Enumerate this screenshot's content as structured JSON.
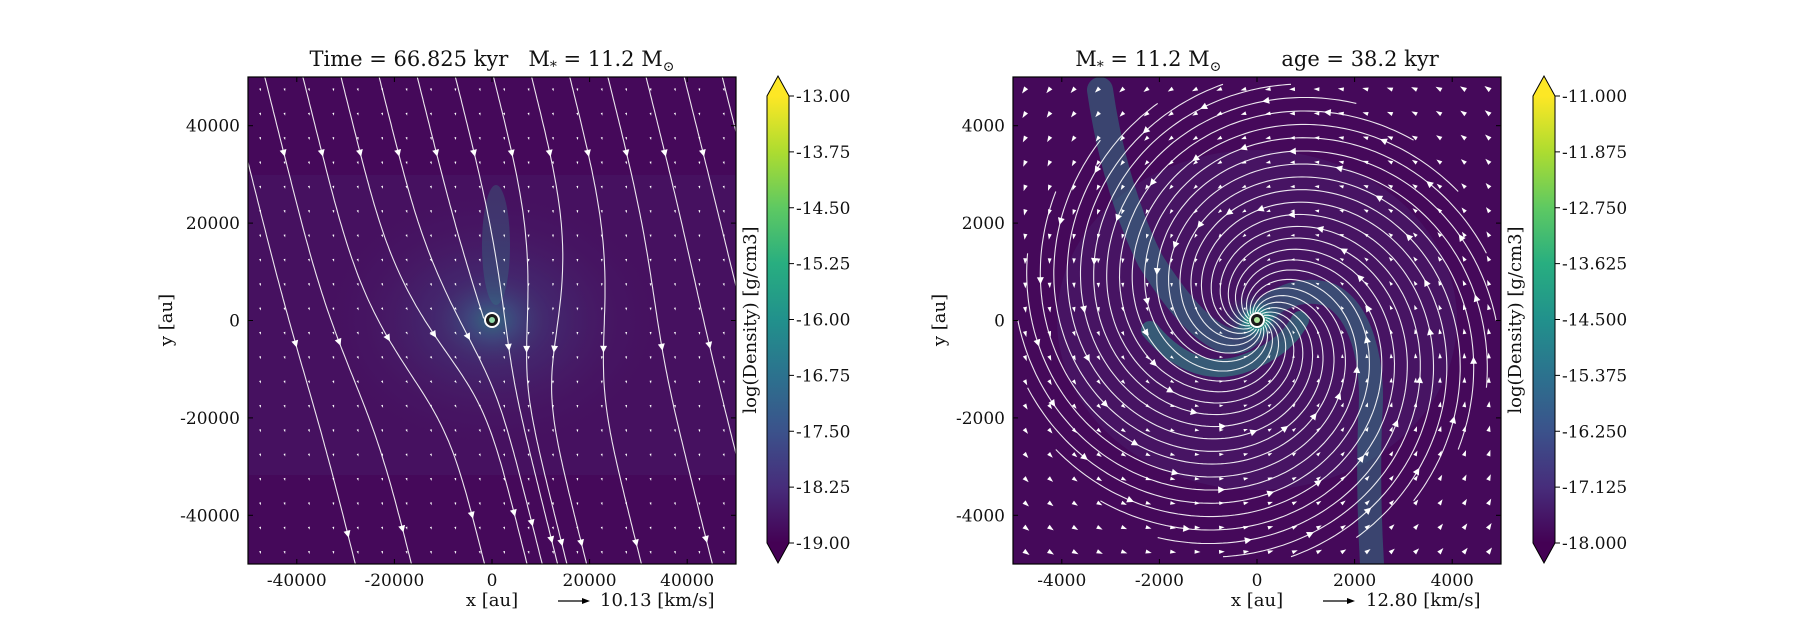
{
  "chart_data": [
    {
      "type": "heatmap",
      "title_parts": [
        "Time = 66.825 kyr",
        "M",
        "*",
        " = 11.2 M",
        "⊙"
      ],
      "xlabel": "x [au]",
      "ylabel": "y [au]",
      "xlim": [
        -50000,
        50000
      ],
      "ylim": [
        -50000,
        50000
      ],
      "xticks": [
        -40000,
        -20000,
        0,
        20000,
        40000
      ],
      "yticks": [
        -40000,
        -20000,
        0,
        20000,
        40000
      ],
      "xtick_labels": [
        "-40000",
        "-20000",
        "0",
        "20000",
        "40000"
      ],
      "ytick_labels": [
        "-40000",
        "-20000",
        "0",
        "20000",
        "40000"
      ],
      "quiver_key": "10.13 [km/s]",
      "colorbar": {
        "label": "log(Density) [g/cm3]",
        "min": -19.0,
        "max": -13.0,
        "ticks": [
          "-13.00",
          "-13.75",
          "-14.50",
          "-15.25",
          "-16.00",
          "-16.75",
          "-17.50",
          "-18.25",
          "-19.00"
        ],
        "colormap": "viridis"
      },
      "flow": "uniform",
      "sink": [
        0,
        0
      ]
    },
    {
      "type": "heatmap",
      "title_parts": [
        "M",
        "*",
        " = 11.2 M",
        "⊙",
        "age = 38.2 kyr"
      ],
      "xlabel": "x [au]",
      "ylabel": "y [au]",
      "xlim": [
        -5000,
        5000
      ],
      "ylim": [
        -5000,
        5000
      ],
      "xticks": [
        -4000,
        -2000,
        0,
        2000,
        4000
      ],
      "yticks": [
        -4000,
        -2000,
        0,
        2000,
        4000
      ],
      "xtick_labels": [
        "-4000",
        "-2000",
        "0",
        "2000",
        "4000"
      ],
      "ytick_labels": [
        "-4000",
        "-2000",
        "0",
        "2000",
        "4000"
      ],
      "quiver_key": "12.80 [km/s]",
      "colorbar": {
        "label": "log(Density) [g/cm3]",
        "min": -18.0,
        "max": -11.0,
        "ticks": [
          "-11.000",
          "-11.875",
          "-12.750",
          "-13.625",
          "-14.500",
          "-15.375",
          "-16.250",
          "-17.125",
          "-18.000"
        ],
        "colormap": "viridis"
      },
      "flow": "spiral",
      "sink": [
        0,
        0
      ]
    }
  ],
  "colors": {
    "background_density": "#45095a",
    "stream": "#ffffff",
    "sink_ring": "#2fbf71"
  }
}
